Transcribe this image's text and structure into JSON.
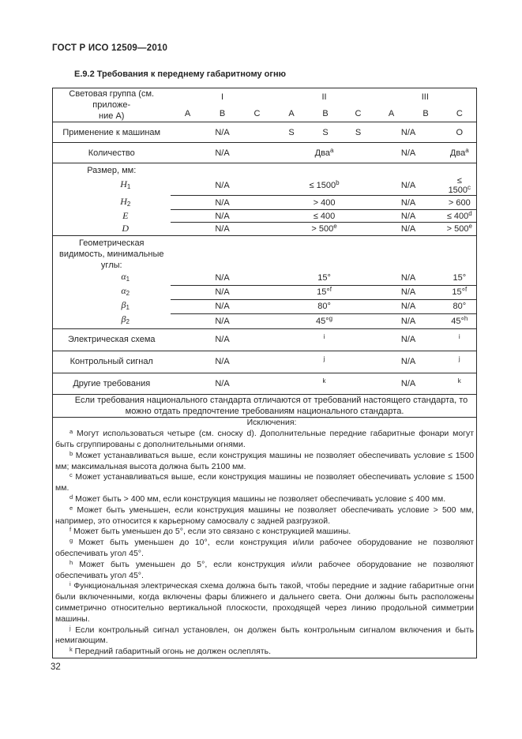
{
  "colors": {
    "text": "#262626",
    "border": "#2b2b2b",
    "background": "#ffffff"
  },
  "page": {
    "standard_code": "ГОСТ Р ИСО 12509—2010",
    "section_title": "Е.9.2 Требования к переднему габаритному огню",
    "page_number": "32"
  },
  "table": {
    "corner_lines": [
      "Световая группа (см. приложе-",
      "ние А)"
    ],
    "groups": [
      "I",
      "II",
      "III"
    ],
    "subcolumns": [
      "A",
      "B",
      "C"
    ],
    "rows": [
      {
        "label": "Применение к машинам",
        "border": "full",
        "h": 26,
        "cells": [
          {
            "t": "N/A",
            "span": 3
          },
          {
            "t": "S",
            "span": 1
          },
          {
            "t": "S",
            "span": 1
          },
          {
            "t": "S",
            "span": 1
          },
          {
            "t": "N/A",
            "span": 2
          },
          {
            "t": "O",
            "span": 1
          }
        ]
      },
      {
        "label": "Количество",
        "border": "full",
        "h": 26,
        "cells": [
          {
            "t": "N/A",
            "span": 3
          },
          {
            "t": "Два",
            "sup": "a",
            "span": 3
          },
          {
            "t": "N/A",
            "span": 2
          },
          {
            "t": "Два",
            "sup": "a",
            "span": 1
          }
        ]
      },
      {
        "label": "Размер, мм:",
        "section": true,
        "border": "full",
        "h": 14,
        "cells": [
          {
            "t": "",
            "span": 3
          },
          {
            "t": "",
            "span": 3
          },
          {
            "t": "",
            "span": 2
          },
          {
            "t": "",
            "span": 1
          }
        ]
      },
      {
        "sym": "H",
        "sub": "1",
        "border": "none",
        "h": 16,
        "cells": [
          {
            "t": "N/A",
            "span": 3
          },
          {
            "t": "≤ 1500",
            "sup": "b",
            "span": 3
          },
          {
            "t": "N/A",
            "span": 2
          },
          {
            "t": "≤ 1500",
            "sup": "c",
            "span": 1
          }
        ]
      },
      {
        "sym": "H",
        "sub": "2",
        "border": "cells",
        "h": 16,
        "cells": [
          {
            "t": "N/A",
            "span": 3
          },
          {
            "t": "> 400",
            "span": 3
          },
          {
            "t": "N/A",
            "span": 2
          },
          {
            "t": "> 600",
            "span": 1
          }
        ]
      },
      {
        "sym": "E",
        "sub": "",
        "border": "cells",
        "h": 16,
        "cells": [
          {
            "t": "N/A",
            "span": 3
          },
          {
            "t": "≤ 400",
            "span": 3
          },
          {
            "t": "N/A",
            "span": 2
          },
          {
            "t": "≤ 400",
            "sup": "d",
            "span": 1
          }
        ]
      },
      {
        "sym": "D",
        "sub": "",
        "border": "cells",
        "h": 17,
        "cells": [
          {
            "t": "N/A",
            "span": 3
          },
          {
            "t": "> 500",
            "sup": "e",
            "span": 3
          },
          {
            "t": "N/A",
            "span": 2
          },
          {
            "t": "> 500",
            "sup": "e",
            "span": 1
          }
        ]
      },
      {
        "label": "Геометрическая видимость, минимальные углы:",
        "section": true,
        "border": "full",
        "h": 30,
        "cells": [
          {
            "t": "",
            "span": 3
          },
          {
            "t": "",
            "span": 3
          },
          {
            "t": "",
            "span": 2
          },
          {
            "t": "",
            "span": 1
          }
        ]
      },
      {
        "sym": "α",
        "sub": "1",
        "border": "none",
        "h": 17,
        "cells": [
          {
            "t": "N/A",
            "span": 3
          },
          {
            "t": "15°",
            "span": 3
          },
          {
            "t": "N/A",
            "span": 2
          },
          {
            "t": "15°",
            "span": 1
          }
        ]
      },
      {
        "sym": "α",
        "sub": "2",
        "border": "cells",
        "h": 17,
        "cells": [
          {
            "t": "N/A",
            "span": 3
          },
          {
            "t": "15°",
            "sup": "f",
            "span": 3
          },
          {
            "t": "N/A",
            "span": 2
          },
          {
            "t": "15°",
            "sup": "f",
            "span": 1
          }
        ]
      },
      {
        "sym": "β",
        "sub": "1",
        "border": "cells",
        "h": 17,
        "cells": [
          {
            "t": "N/A",
            "span": 3
          },
          {
            "t": "80°",
            "span": 3
          },
          {
            "t": "N/A",
            "span": 2
          },
          {
            "t": "80°",
            "span": 1
          }
        ]
      },
      {
        "sym": "β",
        "sub": "2",
        "border": "cells",
        "h": 19,
        "cells": [
          {
            "t": "N/A",
            "span": 3
          },
          {
            "t": "45°",
            "sup": "g",
            "span": 3
          },
          {
            "t": "N/A",
            "span": 2
          },
          {
            "t": "45°",
            "sup": "h",
            "span": 1
          }
        ]
      },
      {
        "label": "Электрическая схема",
        "border": "full",
        "h": 28,
        "cells": [
          {
            "t": "N/A",
            "span": 3
          },
          {
            "t": "",
            "sup": "i",
            "span": 3
          },
          {
            "t": "N/A",
            "span": 2
          },
          {
            "t": "",
            "sup": "i",
            "span": 1
          }
        ]
      },
      {
        "label": "Контрольный сигнал",
        "border": "full",
        "h": 28,
        "cells": [
          {
            "t": "N/A",
            "span": 3
          },
          {
            "t": "",
            "sup": "j",
            "span": 3
          },
          {
            "t": "N/A",
            "span": 2
          },
          {
            "t": "",
            "sup": "j",
            "span": 1
          }
        ]
      },
      {
        "label": "Другие требования",
        "border": "full",
        "h": 27,
        "cells": [
          {
            "t": "N/A",
            "span": 3
          },
          {
            "t": "",
            "sup": "k",
            "span": 3
          },
          {
            "t": "N/A",
            "span": 2
          },
          {
            "t": "",
            "sup": "k",
            "span": 1
          }
        ]
      }
    ],
    "note": "Если требования национального стандарта отличаются от требований настоящего стандарта, то можно отдать предпочтение требованиям национального стандарта."
  },
  "exceptions": {
    "heading": "Исключения:",
    "items": [
      {
        "marker": "a",
        "text": "Могут использоваться четыре (см. сноску d). Дополнительные передние габаритные фонари могут быть сгруппированы с дополнительными огнями."
      },
      {
        "marker": "b",
        "text": "Может устанавливаться выше, если конструкция машины не позволяет обеспечивать условие ≤ 1500 мм; максимальная высота должна быть 2100 мм."
      },
      {
        "marker": "c",
        "text": "Может устанавливаться выше, если конструкция машины не позволяет обеспечивать условие ≤ 1500 мм."
      },
      {
        "marker": "d",
        "text": "Может быть > 400 мм, если конструкция машины не позволяет обеспечивать условие ≤ 400 мм."
      },
      {
        "marker": "e",
        "text": "Может быть уменьшен, если конструкция машины не позволяет обеспечивать условие > 500 мм, например, это относится к карьерному самосвалу с задней разгрузкой."
      },
      {
        "marker": "f",
        "text": "Может быть уменьшен до 5°, если это связано с конструкцией машины."
      },
      {
        "marker": "g",
        "text": "Может быть уменьшен до 10°, если конструкция и/или рабочее оборудование не позволяют обеспечивать угол 45°."
      },
      {
        "marker": "h",
        "text": "Может быть уменьшен до 5°, если конструкция и/или рабочее оборудование не позволяют обеспечивать угол 45°."
      },
      {
        "marker": "i",
        "text": "Функциональная электрическая схема должна быть такой, чтобы  передние и задние габаритные огни были включенными, когда включены фары ближнего и дальнего света. Они должны быть расположены симметрично относительно вертикальной плоскости, проходящей через линию продольной симметрии машины."
      },
      {
        "marker": "j",
        "text": "Если контрольный сигнал установлен, он должен быть контрольным сигналом включения и быть немигающим."
      },
      {
        "marker": "k",
        "text": "Передний габаритный огонь не должен ослеплять."
      }
    ]
  }
}
